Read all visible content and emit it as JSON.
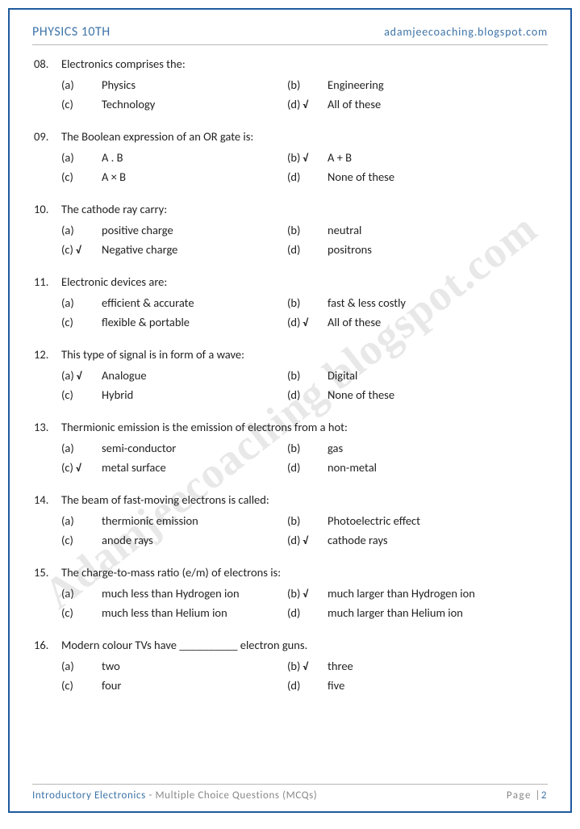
{
  "header": {
    "left": "PHYSICS 10TH",
    "right": "adamjeecoaching.blogspot.com"
  },
  "watermark": "Adamjeecoaching.blogspot.com",
  "footer": {
    "title": "Introductory Electronics",
    "subtitle": " - Multiple Choice Questions (MCQs)",
    "page_label": "Page |",
    "page_num": "2"
  },
  "check_mark": "√",
  "questions": [
    {
      "num": "08.",
      "text": "Electronics comprises the:",
      "options": [
        {
          "label": "(a)",
          "text": "Physics",
          "correct": false
        },
        {
          "label": "(b)",
          "text": "Engineering",
          "correct": false
        },
        {
          "label": "(c)",
          "text": "Technology",
          "correct": false
        },
        {
          "label": "(d)",
          "text": "All of these",
          "correct": true
        }
      ]
    },
    {
      "num": "09.",
      "text": "The Boolean expression of an OR gate is:",
      "options": [
        {
          "label": "(a)",
          "text": "A . B",
          "correct": false
        },
        {
          "label": "(b)",
          "text": "A + B",
          "correct": true
        },
        {
          "label": "(c)",
          "text": "A × B",
          "correct": false
        },
        {
          "label": "(d)",
          "text": "None of these",
          "correct": false
        }
      ]
    },
    {
      "num": "10.",
      "text": "The cathode ray carry:",
      "options": [
        {
          "label": "(a)",
          "text": "positive charge",
          "correct": false
        },
        {
          "label": "(b)",
          "text": "neutral",
          "correct": false
        },
        {
          "label": "(c)",
          "text": "Negative charge",
          "correct": true
        },
        {
          "label": "(d)",
          "text": "positrons",
          "correct": false
        }
      ]
    },
    {
      "num": "11.",
      "text": "Electronic devices are:",
      "options": [
        {
          "label": "(a)",
          "text": "efficient & accurate",
          "correct": false
        },
        {
          "label": "(b)",
          "text": "fast & less costly",
          "correct": false
        },
        {
          "label": "(c)",
          "text": "flexible & portable",
          "correct": false
        },
        {
          "label": "(d)",
          "text": "All of these",
          "correct": true
        }
      ]
    },
    {
      "num": "12.",
      "text": "This type of signal is in form of a wave:",
      "options": [
        {
          "label": "(a)",
          "text": "Analogue",
          "correct": true
        },
        {
          "label": "(b)",
          "text": "Digital",
          "correct": false
        },
        {
          "label": "(c)",
          "text": "Hybrid",
          "correct": false
        },
        {
          "label": "(d)",
          "text": "None of these",
          "correct": false
        }
      ]
    },
    {
      "num": "13.",
      "text": "Thermionic emission is the emission of electrons from a hot:",
      "options": [
        {
          "label": "(a)",
          "text": "semi-conductor",
          "correct": false
        },
        {
          "label": "(b)",
          "text": "gas",
          "correct": false
        },
        {
          "label": "(c)",
          "text": "metal surface",
          "correct": true
        },
        {
          "label": "(d)",
          "text": "non-metal",
          "correct": false
        }
      ]
    },
    {
      "num": "14.",
      "text": "The beam of fast-moving electrons is called:",
      "options": [
        {
          "label": "(a)",
          "text": "thermionic emission",
          "correct": false
        },
        {
          "label": "(b)",
          "text": "Photoelectric effect",
          "correct": false
        },
        {
          "label": "(c)",
          "text": "anode rays",
          "correct": false
        },
        {
          "label": "(d)",
          "text": "cathode rays",
          "correct": true
        }
      ]
    },
    {
      "num": "15.",
      "text": "The charge-to-mass ratio (e/m) of electrons is:",
      "options": [
        {
          "label": "(a)",
          "text": "much less than Hydrogen ion",
          "correct": false
        },
        {
          "label": "(b)",
          "text": "much larger than Hydrogen ion",
          "correct": true
        },
        {
          "label": "(c)",
          "text": "much less than Helium ion",
          "correct": false
        },
        {
          "label": "(d)",
          "text": "much larger than Helium ion",
          "correct": false
        }
      ]
    },
    {
      "num": "16.",
      "text": "Modern colour TVs have __________ electron guns.",
      "options": [
        {
          "label": "(a)",
          "text": "two",
          "correct": false
        },
        {
          "label": "(b)",
          "text": "three",
          "correct": true
        },
        {
          "label": "(c)",
          "text": "four",
          "correct": false
        },
        {
          "label": "(d)",
          "text": "five",
          "correct": false
        }
      ]
    }
  ]
}
